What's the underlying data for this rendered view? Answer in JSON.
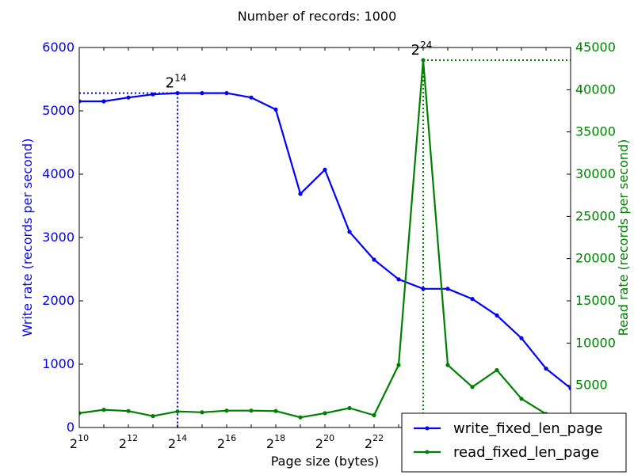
{
  "chart_data": {
    "type": "line",
    "title": "Number of records: 1000",
    "xlabel": "Page size (bytes)",
    "ylabel_left": "Write rate (records per second)",
    "ylabel_right": "Read rate (records per second)",
    "x_exponents": [
      10,
      11,
      12,
      13,
      14,
      15,
      16,
      17,
      18,
      19,
      20,
      21,
      22,
      23,
      24,
      25,
      26,
      27,
      28,
      29,
      30
    ],
    "x_tick_exponents": [
      10,
      12,
      14,
      16,
      18,
      20,
      22
    ],
    "xlim_exponent": [
      10,
      30
    ],
    "ylim_left": [
      0,
      6000
    ],
    "ylim_right": [
      0,
      45000
    ],
    "yticks_left": [
      0,
      1000,
      2000,
      3000,
      4000,
      5000,
      6000
    ],
    "yticks_right": [
      5000,
      10000,
      15000,
      20000,
      25000,
      30000,
      35000,
      40000,
      45000
    ],
    "colors": {
      "left_axis": "#0000ff",
      "right_axis": "#008000",
      "write_series": "#0000ff",
      "read_series": "#008000",
      "axes": "#000000"
    },
    "series": [
      {
        "name": "write_fixed_len_page",
        "axis": "left",
        "color": "#0000ff",
        "values": [
          5150,
          5150,
          5210,
          5260,
          5280,
          5280,
          5280,
          5210,
          5020,
          3690,
          4070,
          3090,
          2650,
          2340,
          2190,
          2190,
          2030,
          1770,
          1410,
          930,
          620
        ]
      },
      {
        "name": "read_fixed_len_page",
        "axis": "right",
        "color": "#008000",
        "values": [
          1700,
          2100,
          1950,
          1350,
          1900,
          1800,
          2000,
          2000,
          1950,
          1200,
          1700,
          2300,
          1450,
          7400,
          43500,
          7400,
          4800,
          6800,
          3400,
          1600,
          500
        ]
      }
    ],
    "annotations": [
      {
        "label_base": "2",
        "label_exp": "14",
        "series": "write_fixed_len_page",
        "x_exponent": 14,
        "y": 5280,
        "color": "#0000ff"
      },
      {
        "label_base": "2",
        "label_exp": "24",
        "series": "read_fixed_len_page",
        "x_exponent": 24,
        "y": 43500,
        "color": "#008000"
      }
    ],
    "legend": {
      "placement": "lower-right",
      "entries": [
        "write_fixed_len_page",
        "read_fixed_len_page"
      ]
    },
    "grid": false
  }
}
